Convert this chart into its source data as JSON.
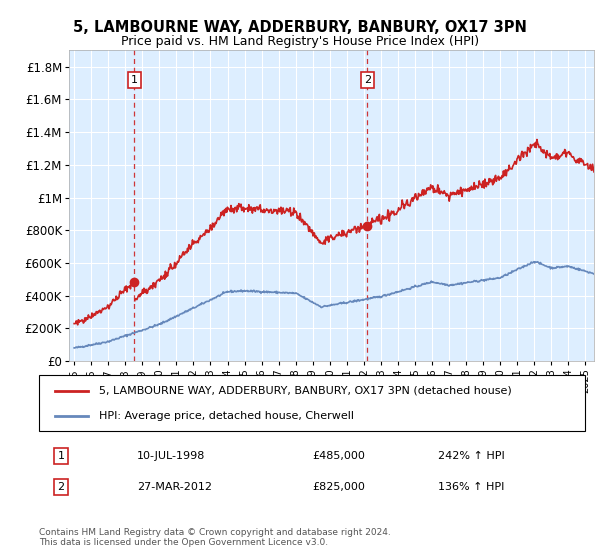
{
  "title": "5, LAMBOURNE WAY, ADDERBURY, BANBURY, OX17 3PN",
  "subtitle": "Price paid vs. HM Land Registry's House Price Index (HPI)",
  "hpi_label": "HPI: Average price, detached house, Cherwell",
  "property_label": "5, LAMBOURNE WAY, ADDERBURY, BANBURY, OX17 3PN (detached house)",
  "footnote": "Contains HM Land Registry data © Crown copyright and database right 2024.\nThis data is licensed under the Open Government Licence v3.0.",
  "sale1_date": "10-JUL-1998",
  "sale1_price": 485000,
  "sale1_pct": "242%",
  "sale2_date": "27-MAR-2012",
  "sale2_price": 825000,
  "sale2_pct": "136%",
  "hpi_color": "#6688bb",
  "property_color": "#cc2222",
  "background_color": "#ddeeff",
  "ylim": [
    0,
    1900000
  ],
  "yticks": [
    0,
    200000,
    400000,
    600000,
    800000,
    1000000,
    1200000,
    1400000,
    1600000,
    1800000
  ],
  "ytick_labels": [
    "£0",
    "£200K",
    "£400K",
    "£600K",
    "£800K",
    "£1M",
    "£1.2M",
    "£1.4M",
    "£1.6M",
    "£1.8M"
  ],
  "xmin_year": 1994.7,
  "xmax_year": 2025.5,
  "xtick_years": [
    1995,
    1996,
    1997,
    1998,
    1999,
    2000,
    2001,
    2002,
    2003,
    2004,
    2005,
    2006,
    2007,
    2008,
    2009,
    2010,
    2011,
    2012,
    2013,
    2014,
    2015,
    2016,
    2017,
    2018,
    2019,
    2020,
    2021,
    2022,
    2023,
    2024,
    2025
  ]
}
